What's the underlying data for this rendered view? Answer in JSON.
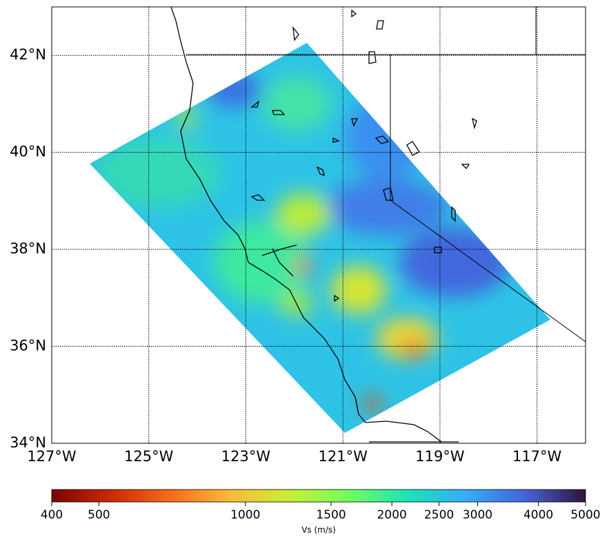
{
  "chart_data": {
    "type": "map",
    "xlim": [
      -127,
      -116
    ],
    "ylim": [
      34,
      43
    ],
    "xticks": [
      {
        "value": -127,
        "label": "127°W"
      },
      {
        "value": -125,
        "label": "125°W"
      },
      {
        "value": -123,
        "label": "123°W"
      },
      {
        "value": -121,
        "label": "121°W"
      },
      {
        "value": -119,
        "label": "119°W"
      },
      {
        "value": -117,
        "label": "117°W"
      }
    ],
    "yticks": [
      {
        "value": 34,
        "label": "34°N"
      },
      {
        "value": 36,
        "label": "36°N"
      },
      {
        "value": 38,
        "label": "38°N"
      },
      {
        "value": 40,
        "label": "40°N"
      },
      {
        "value": 42,
        "label": "42°N"
      }
    ],
    "grid": true,
    "colorbar": {
      "label": "Vs (m/s)",
      "lim": [
        400,
        5000
      ],
      "log": true,
      "ticks": [
        400,
        500,
        1000,
        1500,
        2000,
        2500,
        3000,
        4000,
        5000
      ],
      "colormap": [
        "#7a0403",
        "#ca2a04",
        "#f66b19",
        "#faba39",
        "#c8ef34",
        "#72fe5e",
        "#1ae4b6",
        "#36aaf9",
        "#4662d7",
        "#30123b"
      ]
    }
  }
}
